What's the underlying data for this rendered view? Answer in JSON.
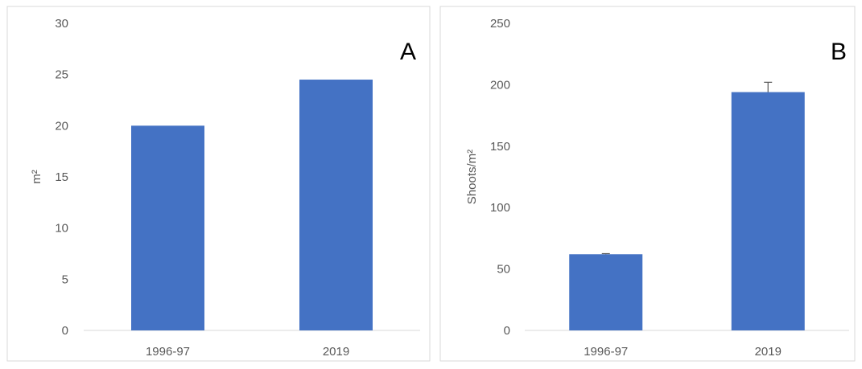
{
  "chart_data": [
    {
      "type": "bar",
      "panel_label": "A",
      "categories": [
        "1996-97",
        "2019"
      ],
      "values": [
        20,
        24.5
      ],
      "error": [
        null,
        null
      ],
      "ylabel": "m²",
      "ylim": [
        0,
        30
      ],
      "yticks": [
        0,
        5,
        10,
        15,
        20,
        25,
        30
      ],
      "grid": false,
      "bar_color": "#4472C4"
    },
    {
      "type": "bar",
      "panel_label": "B",
      "categories": [
        "1996-97",
        "2019"
      ],
      "values": [
        62,
        194
      ],
      "error": [
        0.5,
        8
      ],
      "ylabel": "Shoots/m²",
      "ylim": [
        0,
        250
      ],
      "yticks": [
        0,
        50,
        100,
        150,
        200,
        250
      ],
      "grid": false,
      "bar_color": "#4472C4"
    }
  ]
}
